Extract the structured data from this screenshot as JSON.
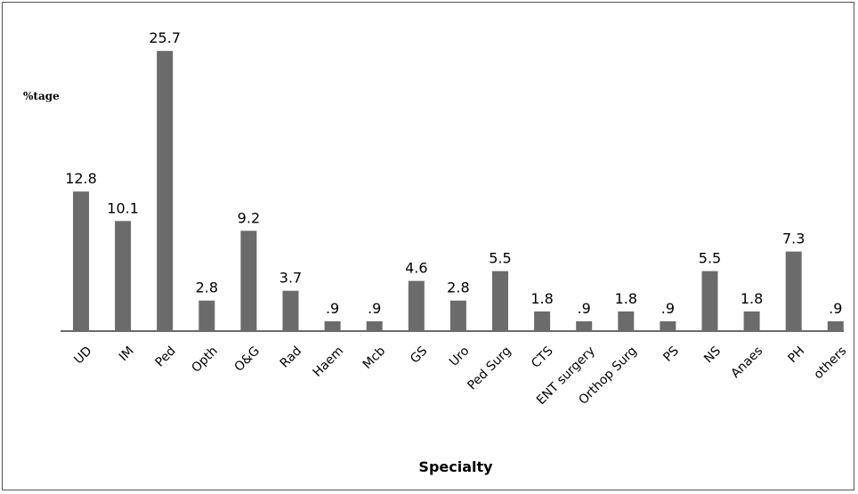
{
  "chart_data": {
    "type": "bar",
    "title": "",
    "xlabel": "Specialty",
    "ylabel": "%tage",
    "ylim": [
      0,
      28
    ],
    "grid": false,
    "legend": "none",
    "bar_color": "#6b6b6b",
    "categories": [
      "UD",
      "IM",
      "Ped",
      "Opth",
      "O&G",
      "Rad",
      "Haem",
      "Mcb",
      "GS",
      "Uro",
      "Ped Surg",
      "CTS",
      "ENT surgery",
      "Orthop Surg",
      "PS",
      "NS",
      "Anaes",
      "PH",
      "others"
    ],
    "values": [
      12.8,
      10.1,
      25.7,
      2.8,
      9.2,
      3.7,
      0.9,
      0.9,
      4.6,
      2.8,
      5.5,
      1.8,
      0.9,
      1.8,
      0.9,
      5.5,
      1.8,
      7.3,
      0.9
    ],
    "value_labels": [
      "12.8",
      "10.1",
      "25.7",
      "2.8",
      "9.2",
      "3.7",
      ".9",
      ".9",
      "4.6",
      "2.8",
      "5.5",
      "1.8",
      ".9",
      "1.8",
      ".9",
      "5.5",
      "1.8",
      "7.3",
      ".9"
    ]
  }
}
